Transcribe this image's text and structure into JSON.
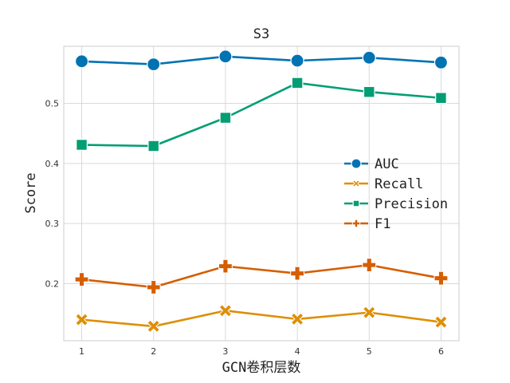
{
  "chart_data": {
    "type": "line",
    "title": "S3",
    "xlabel": "GCN卷积层数",
    "ylabel": "Score",
    "x": [
      1,
      2,
      3,
      4,
      5,
      6
    ],
    "xlim": [
      0.75,
      6.25
    ],
    "ylim": [
      0.105,
      0.595
    ],
    "yticks": [
      0.2,
      0.3,
      0.4,
      0.5
    ],
    "grid": true,
    "legend_position": "center-right",
    "series": [
      {
        "name": "AUC",
        "marker": "circle",
        "color": "#0173b2",
        "values": [
          0.57,
          0.565,
          0.578,
          0.571,
          0.576,
          0.568
        ]
      },
      {
        "name": "Recall",
        "marker": "x",
        "color": "#de8f05",
        "values": [
          0.14,
          0.129,
          0.155,
          0.141,
          0.152,
          0.136
        ]
      },
      {
        "name": "Precision",
        "marker": "square",
        "color": "#029e73",
        "values": [
          0.431,
          0.429,
          0.476,
          0.534,
          0.519,
          0.509
        ]
      },
      {
        "name": "F1",
        "marker": "plus",
        "color": "#d55e00",
        "values": [
          0.207,
          0.194,
          0.229,
          0.217,
          0.231,
          0.209
        ]
      }
    ]
  }
}
